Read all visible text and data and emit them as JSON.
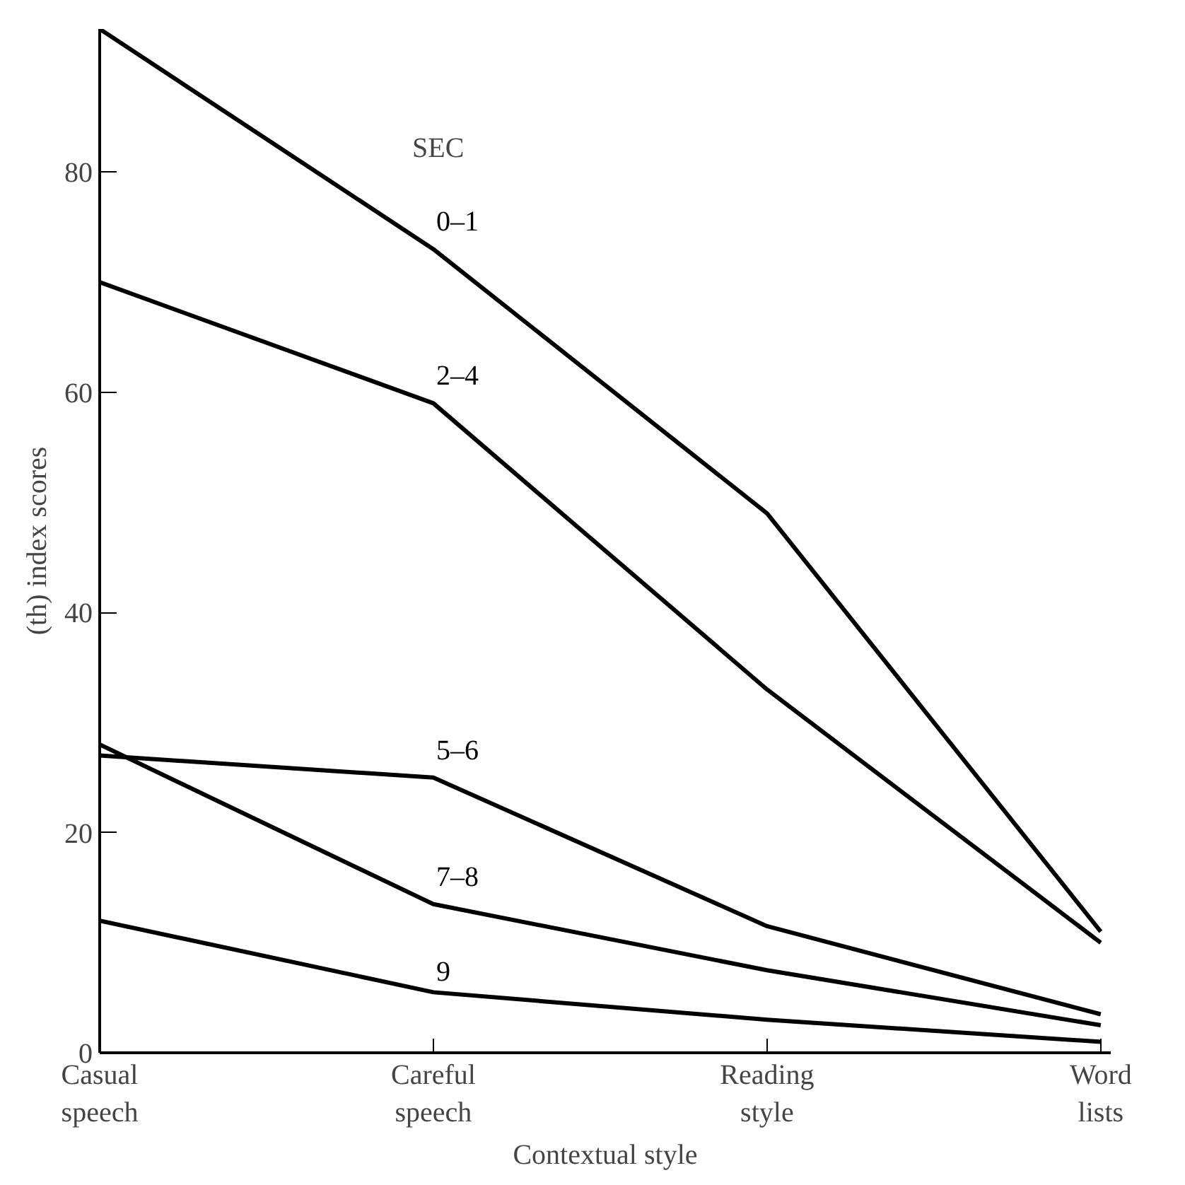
{
  "chart_data": {
    "type": "line",
    "xlabel": "Contextual style",
    "ylabel": "(th) index scores",
    "legend_title": "SEC",
    "categories": [
      "Casual\nspeech",
      "Careful\nspeech",
      "Reading\nstyle",
      "Word\nlists"
    ],
    "series": [
      {
        "name": "0–1",
        "color": "#000000",
        "values": [
          93,
          73,
          49,
          11
        ]
      },
      {
        "name": "2–4",
        "color": "#000000",
        "values": [
          70,
          59,
          33,
          10
        ]
      },
      {
        "name": "5–6",
        "color": "#000000",
        "values": [
          27,
          25,
          11.5,
          3.5
        ]
      },
      {
        "name": "7–8",
        "color": "#000000",
        "values": [
          28,
          13.5,
          7.5,
          2.5
        ]
      },
      {
        "name": "9",
        "color": "#000000",
        "values": [
          12,
          5.5,
          3,
          1
        ]
      }
    ],
    "ylim": [
      0,
      93
    ],
    "yticks": [
      0,
      20,
      40,
      60,
      80
    ],
    "grid": false,
    "marker": "none",
    "line_style": "solid"
  }
}
